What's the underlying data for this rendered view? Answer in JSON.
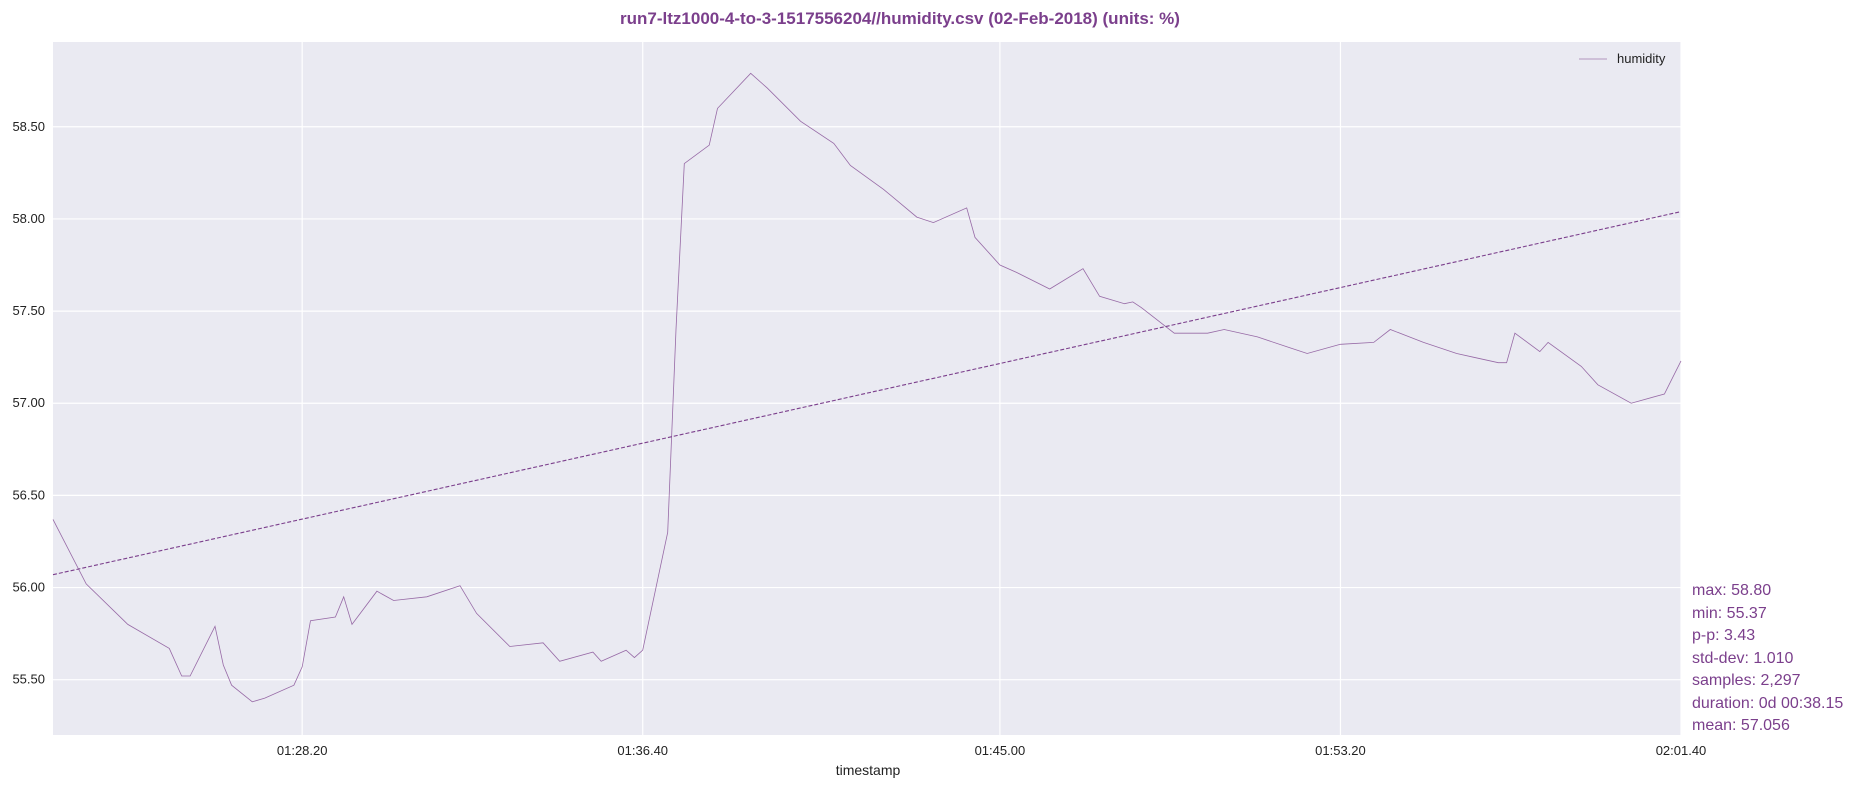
{
  "chart_data": {
    "type": "line",
    "title": "run7-ltz1000-4-to-3-1517556204//humidity.csv (02-Feb-2018) (units: %)",
    "xlabel": "timestamp",
    "ylabel": "",
    "x_ticks": [
      "01:28.20",
      "01:36.40",
      "01:45.00",
      "01:53.20",
      "02:01.40"
    ],
    "y_ticks": [
      "55.50",
      "56.00",
      "56.50",
      "57.00",
      "57.50",
      "58.00",
      "58.50"
    ],
    "xlim": [
      "01:22.20",
      "02:01.40"
    ],
    "ylim": [
      55.2,
      58.96
    ],
    "grid": true,
    "legend": {
      "position": "top-right",
      "entries": [
        "humidity"
      ]
    },
    "series": [
      {
        "name": "humidity",
        "style": "solid",
        "x": [
          "01:22.20",
          "01:23.00",
          "01:24.00",
          "01:25.00",
          "01:25.30",
          "01:25.50",
          "01:26.10",
          "01:26.30",
          "01:26.50",
          "01:27.00",
          "01:27.30",
          "01:28.00",
          "01:28.20",
          "01:28.40",
          "01:29.00",
          "01:29.20",
          "01:29.40",
          "01:30.00",
          "01:30.40",
          "01:31.20",
          "01:32.00",
          "01:32.40",
          "01:33.20",
          "01:34.00",
          "01:34.40",
          "01:35.20",
          "01:35.40",
          "01:36.00",
          "01:36.20",
          "01:36.40",
          "01:37.00",
          "01:37.20",
          "01:37.40",
          "01:38.00",
          "01:38.20",
          "01:39.00",
          "01:39.40",
          "01:40.20",
          "01:41.00",
          "01:41.40",
          "01:42.20",
          "01:43.00",
          "01:43.40",
          "01:44.20",
          "01:44.40",
          "01:45.00",
          "01:45.40",
          "01:46.20",
          "01:47.00",
          "01:47.40",
          "01:48.00",
          "01:48.20",
          "01:48.40",
          "01:49.20",
          "01:50.00",
          "01:50.40",
          "01:51.20",
          "01:52.00",
          "01:52.40",
          "01:53.20",
          "01:54.00",
          "01:54.40",
          "01:55.20",
          "01:56.00",
          "01:56.40",
          "01:57.00",
          "01:57.20",
          "01:57.40",
          "01:58.00",
          "01:58.20",
          "01:59.00",
          "01:59.40",
          "02:00.20",
          "02:01.00",
          "02:01.40"
        ],
        "y": [
          56.37,
          56.02,
          55.8,
          55.67,
          55.52,
          55.52,
          55.79,
          55.58,
          55.47,
          55.38,
          55.4,
          55.47,
          55.57,
          55.82,
          55.84,
          55.95,
          55.8,
          55.98,
          55.93,
          55.95,
          56.01,
          55.86,
          55.68,
          55.7,
          55.6,
          55.65,
          55.6,
          55.66,
          55.62,
          55.66,
          56.3,
          57.4,
          58.3,
          58.4,
          58.6,
          58.79,
          58.71,
          58.53,
          58.41,
          58.29,
          58.16,
          58.01,
          57.98,
          58.06,
          57.9,
          57.75,
          57.71,
          57.62,
          57.73,
          57.58,
          57.54,
          57.55,
          57.52,
          57.38,
          57.38,
          57.4,
          57.36,
          57.3,
          57.27,
          57.32,
          57.33,
          57.4,
          57.33,
          57.27,
          57.25,
          57.22,
          57.22,
          57.38,
          57.28,
          57.33,
          57.2,
          57.1,
          57.0,
          57.05,
          57.23
        ]
      },
      {
        "name": "",
        "style": "dashed",
        "x": [
          "01:22.20",
          "02:01.40"
        ],
        "y": [
          56.07,
          58.04
        ]
      }
    ],
    "color": "#7b3f8c"
  },
  "stats": [
    "max: 58.80",
    "min: 55.37",
    "p-p: 3.43",
    "std-dev: 1.010",
    "samples: 2,297",
    "duration: 0d 00:38.15",
    "mean: 57.056"
  ]
}
